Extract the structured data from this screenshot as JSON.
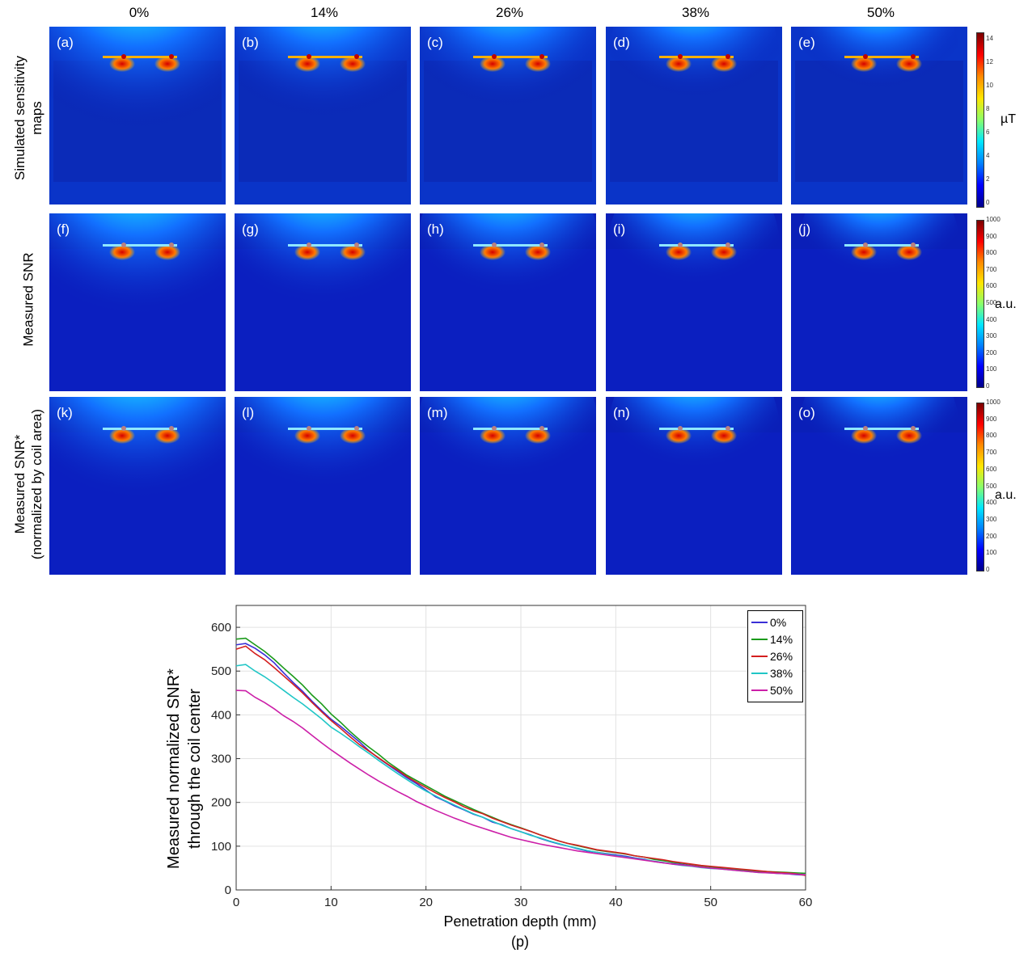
{
  "columns": [
    "0%",
    "14%",
    "26%",
    "38%",
    "50%"
  ],
  "row_labels": {
    "sim": [
      "Simulated sensitivity",
      "maps"
    ],
    "snr": [
      "Measured SNR"
    ],
    "snr_norm": [
      "Measured SNR*",
      "(normalized by coil area)"
    ]
  },
  "panels": {
    "sim": [
      "(a)",
      "(b)",
      "(c)",
      "(d)",
      "(e)"
    ],
    "snr": [
      "(f)",
      "(g)",
      "(h)",
      "(i)",
      "(j)"
    ],
    "snr_norm": [
      "(k)",
      "(l)",
      "(m)",
      "(n)",
      "(o)"
    ]
  },
  "colorbars": {
    "sim": {
      "unit": "µT",
      "ticks": [
        "14",
        "12",
        "10",
        "8",
        "6",
        "4",
        "2",
        "0"
      ]
    },
    "snr": {
      "unit": "a.u.",
      "ticks": [
        "1000",
        "900",
        "800",
        "700",
        "600",
        "500",
        "400",
        "300",
        "200",
        "100",
        "0"
      ]
    },
    "snr_norm": {
      "unit": "a.u.",
      "ticks": [
        "1000",
        "900",
        "800",
        "700",
        "600",
        "500",
        "400",
        "300",
        "200",
        "100",
        "0"
      ]
    }
  },
  "plot": {
    "ylabel_lines": [
      "Measured normalized SNR*",
      "through the coil center"
    ],
    "xlabel": "Penetration depth (mm)",
    "caption": "(p)"
  },
  "chart_data": {
    "type": "line",
    "xlabel": "Penetration depth (mm)",
    "ylabel": "Measured normalized SNR* through the coil center",
    "xlim": [
      0,
      60
    ],
    "ylim": [
      0,
      650
    ],
    "xticks": [
      0,
      10,
      20,
      30,
      40,
      50,
      60
    ],
    "yticks": [
      0,
      100,
      200,
      300,
      400,
      500,
      600
    ],
    "grid": true,
    "legend_position": "top-right",
    "x": [
      0,
      1,
      2,
      3,
      4,
      5,
      6,
      7,
      8,
      9,
      10,
      11,
      12,
      13,
      14,
      15,
      16,
      17,
      18,
      19,
      20,
      21,
      22,
      23,
      24,
      25,
      26,
      27,
      28,
      29,
      30,
      31,
      32,
      33,
      34,
      35,
      36,
      37,
      38,
      39,
      40,
      41,
      42,
      43,
      44,
      45,
      46,
      47,
      48,
      49,
      50,
      51,
      52,
      53,
      54,
      55,
      56,
      57,
      58,
      59,
      60
    ],
    "series": [
      {
        "name": "0%",
        "color": "#3a2fd6",
        "values": [
          560,
          563,
          552,
          537,
          519,
          496,
          474,
          454,
          431,
          410,
          390,
          374,
          356,
          338,
          318,
          301,
          286,
          271,
          256,
          243,
          228,
          213,
          203,
          192,
          183,
          173,
          166,
          155,
          149,
          140,
          133,
          126,
          118,
          111,
          105,
          100,
          94,
          89,
          86,
          83,
          80,
          77,
          73,
          70,
          65,
          62,
          60,
          58,
          55,
          52,
          50,
          49,
          47,
          45,
          43,
          41,
          40,
          38,
          37,
          35,
          34
        ]
      },
      {
        "name": "14%",
        "color": "#1a9a1a",
        "values": [
          573,
          575,
          560,
          545,
          527,
          507,
          488,
          468,
          445,
          425,
          402,
          383,
          362,
          343,
          326,
          310,
          292,
          277,
          262,
          250,
          238,
          226,
          214,
          204,
          194,
          184,
          175,
          166,
          157,
          149,
          142,
          134,
          126,
          119,
          112,
          106,
          101,
          96,
          91,
          88,
          85,
          82,
          78,
          75,
          70,
          67,
          63,
          61,
          58,
          55,
          53,
          51,
          49,
          47,
          45,
          43,
          42,
          41,
          40,
          39,
          38
        ]
      },
      {
        "name": "26%",
        "color": "#d41f1f",
        "values": [
          550,
          557,
          540,
          526,
          508,
          489,
          470,
          450,
          428,
          407,
          387,
          369,
          350,
          332,
          317,
          302,
          287,
          274,
          259,
          246,
          234,
          222,
          211,
          201,
          190,
          181,
          174,
          164,
          156,
          148,
          141,
          134,
          126,
          119,
          112,
          106,
          102,
          97,
          92,
          89,
          86,
          83,
          78,
          75,
          72,
          69,
          65,
          62,
          59,
          56,
          54,
          52,
          50,
          48,
          46,
          44,
          42,
          40,
          39,
          37,
          33
        ]
      },
      {
        "name": "38%",
        "color": "#20c6c6",
        "values": [
          512,
          515,
          500,
          487,
          472,
          456,
          440,
          425,
          408,
          391,
          372,
          358,
          343,
          327,
          312,
          296,
          281,
          266,
          252,
          238,
          226,
          215,
          204,
          194,
          184,
          174,
          166,
          157,
          148,
          140,
          133,
          125,
          119,
          112,
          106,
          100,
          95,
          90,
          86,
          82,
          78,
          75,
          72,
          69,
          66,
          63,
          59,
          56,
          54,
          51,
          49,
          48,
          46,
          44,
          42,
          40,
          39,
          38,
          37,
          36,
          35
        ]
      },
      {
        "name": "50%",
        "color": "#cc1fa8",
        "values": [
          456,
          455,
          440,
          428,
          414,
          398,
          385,
          370,
          353,
          336,
          320,
          305,
          290,
          276,
          262,
          249,
          237,
          225,
          214,
          202,
          192,
          182,
          173,
          164,
          156,
          148,
          141,
          134,
          127,
          120,
          115,
          110,
          105,
          101,
          97,
          93,
          89,
          86,
          83,
          80,
          77,
          74,
          71,
          68,
          65,
          62,
          59,
          57,
          55,
          52,
          50,
          48,
          46,
          44,
          42,
          40,
          39,
          38,
          37,
          36,
          35
        ]
      }
    ]
  }
}
